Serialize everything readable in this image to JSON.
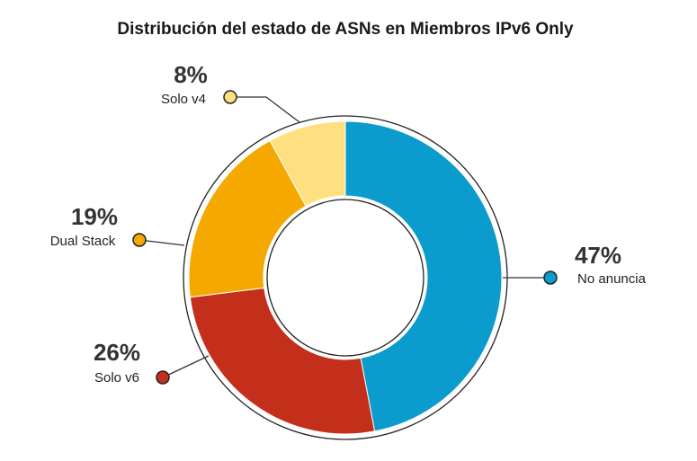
{
  "chart_data": {
    "type": "pie",
    "title": "Distribución del estado de ASNs en Miembros IPv6 Only",
    "slices": [
      {
        "label": "No anuncia",
        "value": 47,
        "display": "47%",
        "color": "#0b9ccd"
      },
      {
        "label": "Solo v6",
        "value": 26,
        "display": "26%",
        "color": "#c42f1c"
      },
      {
        "label": "Dual Stack",
        "value": 19,
        "display": "19%",
        "color": "#f5a800"
      },
      {
        "label": "Solo v4",
        "value": 8,
        "display": "8%",
        "color": "#ffe080"
      }
    ],
    "donut": true
  }
}
